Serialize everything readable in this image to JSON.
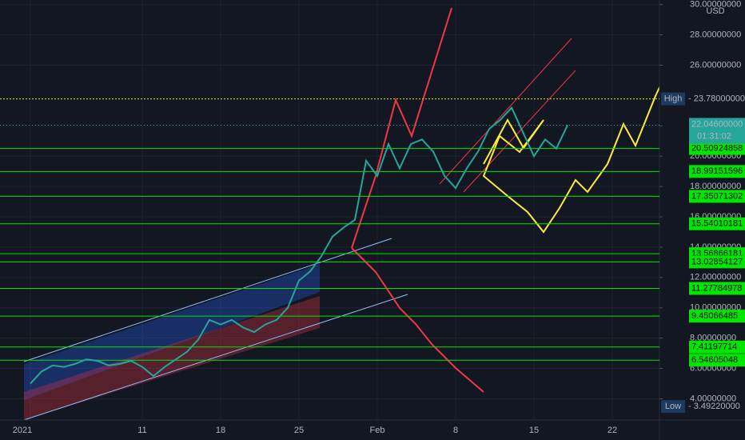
{
  "chart_data": {
    "type": "line",
    "currency": "USD",
    "categories": [
      "2021",
      null,
      null,
      null,
      null,
      null,
      null,
      null,
      null,
      null,
      "11",
      null,
      null,
      null,
      null,
      null,
      null,
      "18",
      null,
      null,
      null,
      null,
      null,
      null,
      "25",
      null,
      null,
      null,
      null,
      null,
      null,
      "Feb",
      null,
      null,
      null,
      null,
      null,
      null,
      "8",
      null,
      null,
      null,
      null,
      null,
      null,
      "15",
      null,
      null,
      null,
      null,
      null,
      null,
      "22"
    ],
    "series": [
      {
        "color": "#26a69a",
        "values": [
          5.0,
          5.8,
          6.2,
          6.1,
          6.3,
          6.6,
          6.5,
          6.2,
          6.3,
          6.5,
          6.1,
          5.5,
          6.1,
          6.6,
          7.1,
          7.9,
          9.2,
          8.9,
          9.2,
          8.7,
          8.4,
          8.9,
          9.2,
          10.0,
          11.8,
          12.4,
          13.4,
          14.7,
          15.3,
          15.8,
          19.7,
          18.7,
          20.8,
          19.2,
          20.8,
          21.1,
          20.3,
          18.7,
          17.9,
          19.2,
          20.3,
          21.8,
          22.4,
          23.2,
          21.6,
          20.0,
          21.1,
          20.5,
          22.046,
          null,
          null,
          null,
          null
        ]
      }
    ],
    "ylim": [
      2.6,
      30.3
    ],
    "yticks": [
      {
        "value": 4,
        "label": "4.00000000"
      },
      {
        "value": 6,
        "label": "6.00000000"
      },
      {
        "value": 8,
        "label": "8.00000000"
      },
      {
        "value": 10,
        "label": "10.00000000"
      },
      {
        "value": 12,
        "label": "12.00000000"
      },
      {
        "value": 14,
        "label": "14.00000000"
      },
      {
        "value": 16,
        "label": "16.00000000"
      },
      {
        "value": 18,
        "label": "18.00000000"
      },
      {
        "value": 20,
        "label": "20.00000000"
      },
      {
        "value": 22,
        "label": "22.00000000"
      },
      {
        "value": 26,
        "label": "26.00000000"
      },
      {
        "value": 28,
        "label": "28.00000000"
      },
      {
        "value": 30,
        "label": "30.00000000"
      }
    ],
    "levels": [
      20.50924858,
      18.99151596,
      17.35071302,
      15.54010181,
      13.56866181,
      13.02854127,
      11.27784978,
      9.45066485,
      7.41197714,
      6.54605048
    ],
    "level_color": "#00e600",
    "high": {
      "name": "High",
      "value": 23.78,
      "label": "- 23.78000000"
    },
    "low": {
      "name": "Low",
      "value": 3.4922,
      "label": "- 3.49220000"
    },
    "last": {
      "value": 22.046,
      "label": "22.04600000",
      "countdown": "01:31:02"
    },
    "grid": true
  }
}
